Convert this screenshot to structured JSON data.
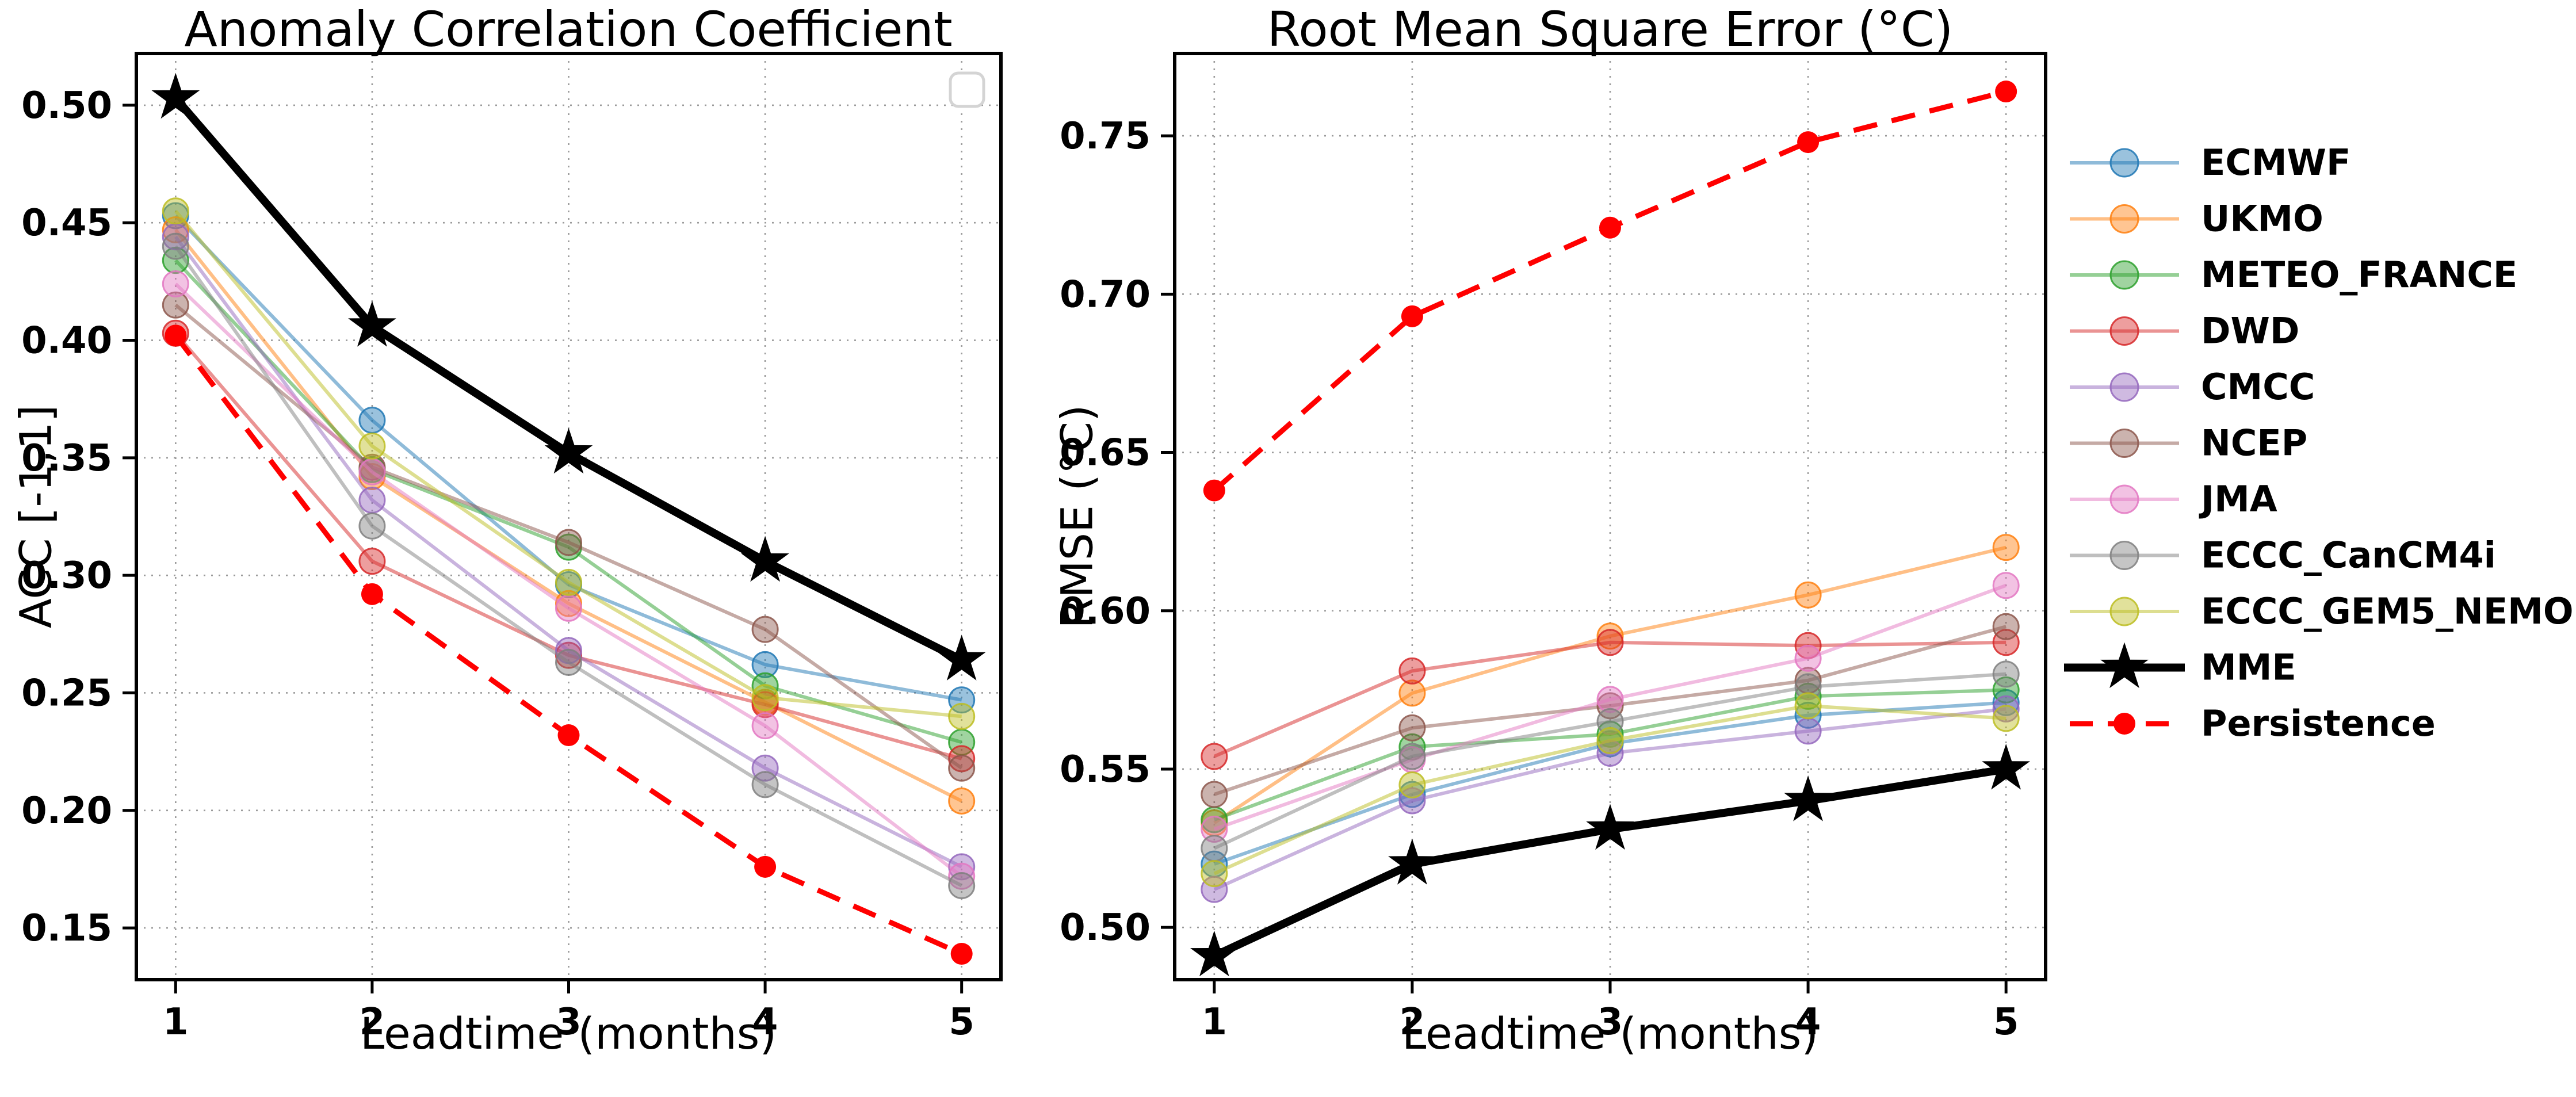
{
  "figure": {
    "background": "#ffffff"
  },
  "titles": {
    "left": "Anomaly Correlation Coefficient",
    "right": "Root Mean Square Error (°C)"
  },
  "chart_data": [
    {
      "type": "line",
      "title": "Anomaly Correlation Coefficient",
      "xlabel": "Leadtime (months)",
      "ylabel": "ACC [-1,1]",
      "x": [
        1,
        2,
        3,
        4,
        5
      ],
      "xticks": [
        1,
        2,
        3,
        4,
        5
      ],
      "xlim": [
        0.8,
        5.2
      ],
      "ylim": [
        0.128,
        0.522
      ],
      "yticks": [
        0.15,
        0.2,
        0.25,
        0.3,
        0.35,
        0.4,
        0.45,
        0.5
      ],
      "grid": true,
      "empty_legend_box": true,
      "series": [
        {
          "name": "ECMWF",
          "values": [
            0.453,
            0.366,
            0.296,
            0.262,
            0.247
          ]
        },
        {
          "name": "UKMO",
          "values": [
            0.447,
            0.342,
            0.288,
            0.246,
            0.204
          ]
        },
        {
          "name": "METEO_FRANCE",
          "values": [
            0.434,
            0.345,
            0.312,
            0.253,
            0.229
          ]
        },
        {
          "name": "DWD",
          "values": [
            0.403,
            0.306,
            0.266,
            0.245,
            0.222
          ]
        },
        {
          "name": "CMCC",
          "values": [
            0.444,
            0.332,
            0.268,
            0.218,
            0.176
          ]
        },
        {
          "name": "NCEP",
          "values": [
            0.415,
            0.346,
            0.314,
            0.277,
            0.218
          ]
        },
        {
          "name": "JMA",
          "values": [
            0.424,
            0.344,
            0.286,
            0.236,
            0.172
          ]
        },
        {
          "name": "ECCC_CanCM4i",
          "values": [
            0.44,
            0.321,
            0.263,
            0.211,
            0.168
          ]
        },
        {
          "name": "ECCC_GEM5_NEMO",
          "values": [
            0.455,
            0.355,
            0.297,
            0.248,
            0.24
          ]
        },
        {
          "name": "MME",
          "values": [
            0.503,
            0.406,
            0.352,
            0.306,
            0.264
          ]
        },
        {
          "name": "Persistence",
          "values": [
            0.402,
            0.292,
            0.232,
            0.176,
            0.139
          ]
        }
      ]
    },
    {
      "type": "line",
      "title": "Root Mean Square Error (°C)",
      "xlabel": "Leadtime (months)",
      "ylabel": "RMSE (°C)",
      "x": [
        1,
        2,
        3,
        4,
        5
      ],
      "xticks": [
        1,
        2,
        3,
        4,
        5
      ],
      "xlim": [
        0.8,
        5.2
      ],
      "ylim": [
        0.4835,
        0.776
      ],
      "yticks": [
        0.5,
        0.55,
        0.6,
        0.65,
        0.7,
        0.75
      ],
      "grid": true,
      "empty_legend_box": false,
      "series": [
        {
          "name": "ECMWF",
          "values": [
            0.52,
            0.542,
            0.558,
            0.567,
            0.571
          ]
        },
        {
          "name": "UKMO",
          "values": [
            0.533,
            0.574,
            0.592,
            0.605,
            0.62
          ]
        },
        {
          "name": "METEO_FRANCE",
          "values": [
            0.534,
            0.557,
            0.561,
            0.573,
            0.575
          ]
        },
        {
          "name": "DWD",
          "values": [
            0.554,
            0.581,
            0.59,
            0.589,
            0.59
          ]
        },
        {
          "name": "CMCC",
          "values": [
            0.512,
            0.54,
            0.555,
            0.562,
            0.569
          ]
        },
        {
          "name": "NCEP",
          "values": [
            0.542,
            0.563,
            0.57,
            0.578,
            0.595
          ]
        },
        {
          "name": "JMA",
          "values": [
            0.531,
            0.553,
            0.572,
            0.585,
            0.608
          ]
        },
        {
          "name": "ECCC_CanCM4i",
          "values": [
            0.525,
            0.554,
            0.565,
            0.576,
            0.58
          ]
        },
        {
          "name": "ECCC_GEM5_NEMO",
          "values": [
            0.517,
            0.545,
            0.559,
            0.57,
            0.566
          ]
        },
        {
          "name": "MME",
          "values": [
            0.491,
            0.52,
            0.531,
            0.54,
            0.55
          ]
        },
        {
          "name": "Persistence",
          "values": [
            0.638,
            0.693,
            0.721,
            0.748,
            0.764
          ]
        }
      ]
    }
  ],
  "legend": {
    "position": "right",
    "entries": [
      {
        "label": "ECMWF",
        "color": "#1f77b4",
        "marker": "circle",
        "line": "solid"
      },
      {
        "label": "UKMO",
        "color": "#ff7f0e",
        "marker": "circle",
        "line": "solid"
      },
      {
        "label": "METEO_FRANCE",
        "color": "#2ca02c",
        "marker": "circle",
        "line": "solid"
      },
      {
        "label": "DWD",
        "color": "#d62728",
        "marker": "circle",
        "line": "solid"
      },
      {
        "label": "CMCC",
        "color": "#9467bd",
        "marker": "circle",
        "line": "solid"
      },
      {
        "label": "NCEP",
        "color": "#8c564b",
        "marker": "circle",
        "line": "solid"
      },
      {
        "label": "JMA",
        "color": "#e377c2",
        "marker": "circle",
        "line": "solid"
      },
      {
        "label": "ECCC_CanCM4i",
        "color": "#7f7f7f",
        "marker": "circle",
        "line": "solid"
      },
      {
        "label": "ECCC_GEM5_NEMO",
        "color": "#bcbd22",
        "marker": "circle",
        "line": "solid"
      },
      {
        "label": "MME",
        "color": "#000000",
        "marker": "star",
        "line": "solid-thick"
      },
      {
        "label": "Persistence",
        "color": "#ff0000",
        "marker": "dot",
        "line": "dashed"
      }
    ]
  },
  "style_hints": {
    "model_line_opacity": 0.5,
    "grid_color": "#9a9a9a",
    "spine_color": "#000000"
  }
}
